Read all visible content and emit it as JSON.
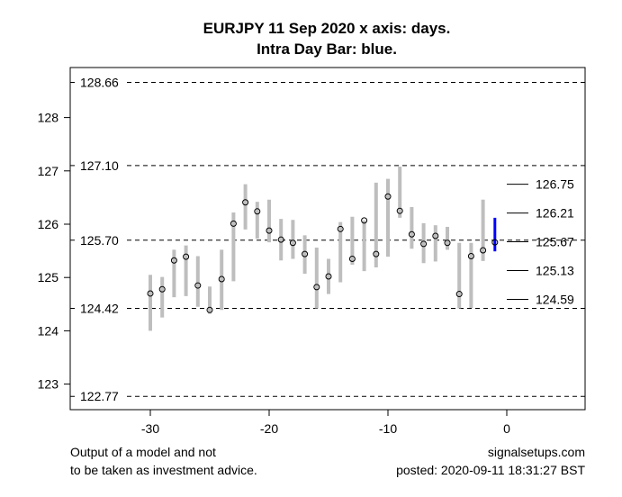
{
  "chart_data": {
    "type": "bar",
    "title_lines": [
      "EURJPY 11 Sep 2020 x axis: days.",
      "Intra Day Bar: blue."
    ],
    "xlim": [
      -36,
      7
    ],
    "ylim": [
      122.6,
      128.9
    ],
    "x_ticks": [
      -30,
      -20,
      -10,
      0
    ],
    "y_ticks": [
      123,
      124,
      125,
      126,
      127,
      128
    ],
    "reference_lines": [
      128.66,
      127.1,
      125.7,
      124.42,
      122.77
    ],
    "reference_labels": [
      "128.66",
      "127.10",
      "125.70",
      "124.42",
      "122.77"
    ],
    "right_levels": [
      126.75,
      126.21,
      125.67,
      125.13,
      124.59
    ],
    "right_level_labels": [
      "126.75",
      "126.21",
      "125.67",
      "125.13",
      "124.59"
    ],
    "bar_color": "#bebebe",
    "intraday_color": "#0000ff",
    "bars": [
      {
        "day": -30,
        "high": 125.05,
        "low": 124.0,
        "close": 124.7
      },
      {
        "day": -29,
        "high": 125.01,
        "low": 124.25,
        "close": 124.78
      },
      {
        "day": -28,
        "high": 125.52,
        "low": 124.63,
        "close": 125.32
      },
      {
        "day": -27,
        "high": 125.6,
        "low": 124.65,
        "close": 125.39
      },
      {
        "day": -26,
        "high": 125.4,
        "low": 124.45,
        "close": 124.85
      },
      {
        "day": -25,
        "high": 124.83,
        "low": 124.32,
        "close": 124.39
      },
      {
        "day": -24,
        "high": 125.52,
        "low": 124.39,
        "close": 124.97
      },
      {
        "day": -23,
        "high": 126.22,
        "low": 124.93,
        "close": 126.01
      },
      {
        "day": -22,
        "high": 126.75,
        "low": 125.9,
        "close": 126.41
      },
      {
        "day": -21,
        "high": 126.42,
        "low": 125.73,
        "close": 126.24
      },
      {
        "day": -20,
        "high": 126.46,
        "low": 125.66,
        "close": 125.88
      },
      {
        "day": -19,
        "high": 126.1,
        "low": 125.32,
        "close": 125.71
      },
      {
        "day": -18,
        "high": 126.08,
        "low": 125.35,
        "close": 125.65
      },
      {
        "day": -17,
        "high": 125.79,
        "low": 125.07,
        "close": 125.44
      },
      {
        "day": -16,
        "high": 125.56,
        "low": 124.42,
        "close": 124.82
      },
      {
        "day": -15,
        "high": 125.35,
        "low": 124.69,
        "close": 125.02
      },
      {
        "day": -14,
        "high": 126.04,
        "low": 124.91,
        "close": 125.91
      },
      {
        "day": -13,
        "high": 126.14,
        "low": 125.24,
        "close": 125.35
      },
      {
        "day": -12,
        "high": 126.07,
        "low": 125.12,
        "close": 126.07
      },
      {
        "day": -11,
        "high": 126.78,
        "low": 125.19,
        "close": 125.44
      },
      {
        "day": -10,
        "high": 126.85,
        "low": 125.39,
        "close": 126.52
      },
      {
        "day": -9,
        "high": 127.08,
        "low": 126.12,
        "close": 126.25
      },
      {
        "day": -8,
        "high": 126.32,
        "low": 125.54,
        "close": 125.81
      },
      {
        "day": -7,
        "high": 126.02,
        "low": 125.27,
        "close": 125.63
      },
      {
        "day": -6,
        "high": 125.98,
        "low": 125.3,
        "close": 125.78
      },
      {
        "day": -5,
        "high": 125.95,
        "low": 125.52,
        "close": 125.65
      },
      {
        "day": -4,
        "high": 125.65,
        "low": 124.42,
        "close": 124.69
      },
      {
        "day": -3,
        "high": 125.65,
        "low": 124.43,
        "close": 125.4
      },
      {
        "day": -2,
        "high": 126.46,
        "low": 125.31,
        "close": 125.51
      },
      {
        "day": -1,
        "high": 126.12,
        "low": 125.49,
        "close": 125.66,
        "intraday": true
      }
    ]
  },
  "footer": {
    "disclaimer_line1": "Output of a model and not",
    "disclaimer_line2": "to be taken as investment advice.",
    "site": "signalsetups.com",
    "posted": "posted: 2020-09-11 18:31:27 BST"
  }
}
